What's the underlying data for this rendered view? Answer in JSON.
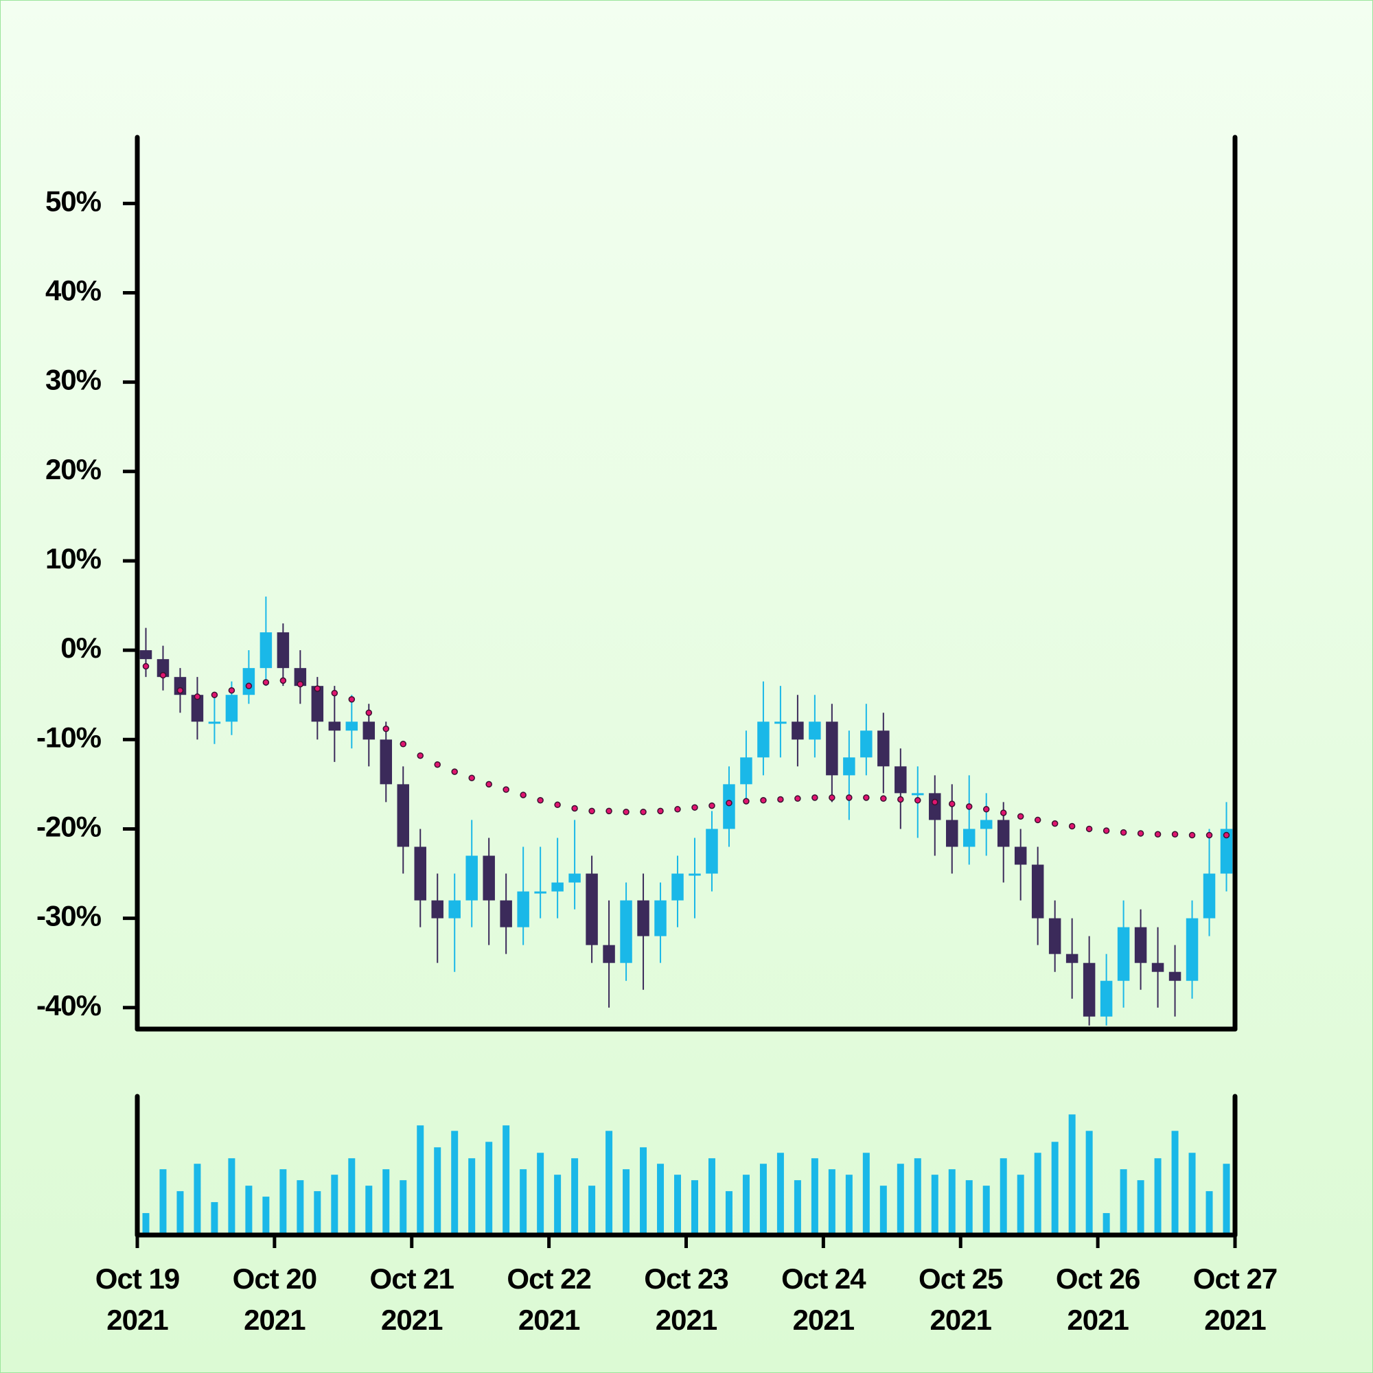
{
  "chart_data": {
    "type": "candlestick",
    "x": [
      "2021-10-19 00:00",
      "2021-10-19 03:00",
      "2021-10-19 06:00",
      "2021-10-19 09:00",
      "2021-10-19 12:00",
      "2021-10-19 15:00",
      "2021-10-19 18:00",
      "2021-10-19 21:00",
      "2021-10-20 00:00",
      "2021-10-20 03:00",
      "2021-10-20 06:00",
      "2021-10-20 09:00",
      "2021-10-20 12:00",
      "2021-10-20 15:00",
      "2021-10-20 18:00",
      "2021-10-20 21:00",
      "2021-10-21 00:00",
      "2021-10-21 03:00",
      "2021-10-21 06:00",
      "2021-10-21 09:00",
      "2021-10-21 12:00",
      "2021-10-21 15:00",
      "2021-10-21 18:00",
      "2021-10-21 21:00",
      "2021-10-22 00:00",
      "2021-10-22 03:00",
      "2021-10-22 06:00",
      "2021-10-22 09:00",
      "2021-10-22 12:00",
      "2021-10-22 15:00",
      "2021-10-22 18:00",
      "2021-10-22 21:00",
      "2021-10-23 00:00",
      "2021-10-23 03:00",
      "2021-10-23 06:00",
      "2021-10-23 09:00",
      "2021-10-23 12:00",
      "2021-10-23 15:00",
      "2021-10-23 18:00",
      "2021-10-23 21:00",
      "2021-10-24 00:00",
      "2021-10-24 03:00",
      "2021-10-24 06:00",
      "2021-10-24 09:00",
      "2021-10-24 12:00",
      "2021-10-24 15:00",
      "2021-10-24 18:00",
      "2021-10-24 21:00",
      "2021-10-25 00:00",
      "2021-10-25 03:00",
      "2021-10-25 06:00",
      "2021-10-25 09:00",
      "2021-10-25 12:00",
      "2021-10-25 15:00",
      "2021-10-25 18:00",
      "2021-10-25 21:00",
      "2021-10-26 00:00",
      "2021-10-26 03:00",
      "2021-10-26 06:00",
      "2021-10-26 09:00",
      "2021-10-26 12:00",
      "2021-10-26 15:00",
      "2021-10-26 18:00",
      "2021-10-26 21:00"
    ],
    "open": [
      0,
      -1,
      -3,
      -5,
      -8,
      -8,
      -5,
      -2,
      2,
      -2,
      -4,
      -8,
      -9,
      -8,
      -10,
      -15,
      -22,
      -28,
      -30,
      -28,
      -23,
      -28,
      -31,
      -27,
      -27,
      -26,
      -25,
      -33,
      -35,
      -28,
      -32,
      -28,
      -25,
      -25,
      -20,
      -15,
      -12,
      -8,
      -8,
      -10,
      -8,
      -14,
      -12,
      -9,
      -13,
      -16,
      -16,
      -19,
      -22,
      -20,
      -19,
      -22,
      -24,
      -30,
      -34,
      -35,
      -41,
      -37,
      -31,
      -35,
      -36,
      -37,
      -30,
      -25
    ],
    "high": [
      2.5,
      0.5,
      -2,
      -3,
      -5,
      -3.5,
      0,
      6,
      3,
      0,
      -3,
      -4,
      -5,
      -6,
      -8,
      -13,
      -20,
      -25,
      -25,
      -19,
      -21,
      -25,
      -22,
      -22,
      -21,
      -19,
      -23,
      -28,
      -26,
      -25,
      -26,
      -23,
      -21,
      -18,
      -13,
      -9,
      -3.5,
      -4,
      -5,
      -5,
      -6,
      -9,
      -6,
      -7,
      -11,
      -13,
      -14,
      -15,
      -14,
      -16,
      -17,
      -20,
      -22,
      -28,
      -30,
      -32,
      -34,
      -28,
      -29,
      -31,
      -33,
      -28,
      -20,
      -17
    ],
    "low": [
      -3,
      -4.5,
      -7,
      -10,
      -10.5,
      -9.5,
      -6,
      -4,
      -4,
      -6,
      -10,
      -12.5,
      -11,
      -13,
      -17,
      -25,
      -31,
      -35,
      -36,
      -31,
      -33,
      -34,
      -33,
      -30,
      -30,
      -29,
      -35,
      -40,
      -37,
      -38,
      -35,
      -31,
      -30,
      -27,
      -22,
      -17,
      -14,
      -12,
      -13,
      -12,
      -17,
      -19,
      -14,
      -16,
      -20,
      -21,
      -23,
      -25,
      -24,
      -23,
      -26,
      -28,
      -33,
      -36,
      -39,
      -42,
      -42,
      -40,
      -38,
      -40,
      -41,
      -39,
      -32,
      -27
    ],
    "close": [
      -1,
      -3,
      -5,
      -8,
      -8,
      -5,
      -2,
      2,
      -2,
      -4,
      -8,
      -9,
      -8,
      -10,
      -15,
      -22,
      -28,
      -30,
      -28,
      -23,
      -28,
      -31,
      -27,
      -27,
      -26,
      -25,
      -33,
      -35,
      -28,
      -32,
      -28,
      -25,
      -25,
      -20,
      -15,
      -12,
      -8,
      -8,
      -10,
      -8,
      -14,
      -12,
      -9,
      -13,
      -16,
      -16,
      -19,
      -22,
      -20,
      -19,
      -22,
      -24,
      -30,
      -34,
      -35,
      -41,
      -37,
      -31,
      -35,
      -36,
      -37,
      -30,
      -25,
      -20
    ],
    "up_color": "#1ab8e8",
    "down_color": "#3b2a5a",
    "ma": {
      "color": "#e0156f",
      "values": [
        -1.8,
        -2.8,
        -4.5,
        -5.2,
        -5.0,
        -4.5,
        -4.0,
        -3.6,
        -3.4,
        -3.8,
        -4.3,
        -4.8,
        -5.5,
        -7.0,
        -8.8,
        -10.5,
        -11.8,
        -12.8,
        -13.6,
        -14.3,
        -15.0,
        -15.6,
        -16.2,
        -16.8,
        -17.3,
        -17.7,
        -18.0,
        -18.0,
        -18.1,
        -18.1,
        -18.0,
        -17.8,
        -17.6,
        -17.4,
        -17.1,
        -16.9,
        -16.8,
        -16.7,
        -16.6,
        -16.5,
        -16.5,
        -16.5,
        -16.5,
        -16.6,
        -16.7,
        -16.8,
        -17.0,
        -17.2,
        -17.5,
        -17.8,
        -18.2,
        -18.6,
        -19.0,
        -19.4,
        -19.7,
        -20.0,
        -20.2,
        -20.4,
        -20.5,
        -20.6,
        -20.6,
        -20.7,
        -20.7,
        -20.7
      ]
    },
    "volume": {
      "color": "#1ab8e8",
      "values": [
        20,
        60,
        40,
        65,
        30,
        70,
        45,
        35,
        60,
        50,
        40,
        55,
        70,
        45,
        60,
        50,
        100,
        80,
        95,
        70,
        85,
        100,
        60,
        75,
        55,
        70,
        45,
        95,
        60,
        80,
        65,
        55,
        50,
        70,
        40,
        55,
        65,
        75,
        50,
        70,
        60,
        55,
        75,
        45,
        65,
        70,
        55,
        60,
        50,
        45,
        70,
        55,
        75,
        85,
        110,
        95,
        20,
        60,
        50,
        70,
        95,
        75,
        40,
        65
      ]
    },
    "xlim": [
      "2021-10-19 00:00",
      "2021-10-27 00:00"
    ],
    "xticks": [
      {
        "value": "2021-10-19 00:00",
        "label": [
          "Oct 19",
          "2021"
        ]
      },
      {
        "value": "2021-10-20 00:00",
        "label": [
          "Oct 20",
          "2021"
        ]
      },
      {
        "value": "2021-10-21 00:00",
        "label": [
          "Oct 21",
          "2021"
        ]
      },
      {
        "value": "2021-10-22 00:00",
        "label": [
          "Oct 22",
          "2021"
        ]
      },
      {
        "value": "2021-10-23 00:00",
        "label": [
          "Oct 23",
          "2021"
        ]
      },
      {
        "value": "2021-10-24 00:00",
        "label": [
          "Oct 24",
          "2021"
        ]
      },
      {
        "value": "2021-10-25 00:00",
        "label": [
          "Oct 25",
          "2021"
        ]
      },
      {
        "value": "2021-10-26 00:00",
        "label": [
          "Oct 26",
          "2021"
        ]
      },
      {
        "value": "2021-10-27 00:00",
        "label": [
          "Oct 27",
          "2021"
        ]
      }
    ],
    "ylim": [
      -42.4,
      57.4
    ],
    "yticks": [
      {
        "value": 50,
        "label": "50%"
      },
      {
        "value": 40,
        "label": "40%"
      },
      {
        "value": 30,
        "label": "30%"
      },
      {
        "value": 20,
        "label": "20%"
      },
      {
        "value": 10,
        "label": "10%"
      },
      {
        "value": 0,
        "label": "0%"
      },
      {
        "value": -10,
        "label": "-10%"
      },
      {
        "value": -20,
        "label": "-20%"
      },
      {
        "value": -30,
        "label": "-30%"
      },
      {
        "value": -40,
        "label": "-40%"
      }
    ]
  }
}
